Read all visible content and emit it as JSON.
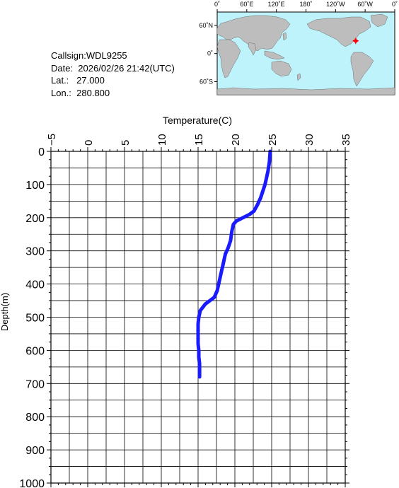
{
  "station": {
    "callsign": "Callsign:WDL9255",
    "date": "Date:  2026/02/26 21:42(UTC)",
    "lat": "Lat.:   27.000",
    "lon": "Lon.:  280.800"
  },
  "map": {
    "lon_ticks": [
      "0˚",
      "60˚E",
      "120˚E",
      "180˚",
      "120˚W",
      "60˚W",
      "0˚"
    ],
    "lat_ticks": [
      "60˚N",
      "0˚",
      "60˚S"
    ],
    "ocean_color": "#bff3fb",
    "land_color": "#bdbdbd",
    "marker_color": "#ff0000",
    "marker_lat": 27.0,
    "marker_lon": 280.8
  },
  "chart_data": {
    "type": "line",
    "title": "",
    "xlabel": "Temperature(C)",
    "ylabel": "Depth(m)",
    "xlim": [
      -5,
      35
    ],
    "ylim": [
      0,
      1000
    ],
    "x_ticks": [
      -5,
      0,
      5,
      10,
      15,
      20,
      25,
      30,
      35
    ],
    "y_ticks": [
      0,
      100,
      200,
      300,
      400,
      500,
      600,
      700,
      800,
      900,
      1000
    ],
    "x_tick_labels": [
      "−5",
      "0",
      "5",
      "10",
      "15",
      "20",
      "25",
      "30",
      "35"
    ],
    "y_tick_labels": [
      "0",
      "100",
      "200",
      "300",
      "400",
      "500",
      "600",
      "700",
      "800",
      "900",
      "1000"
    ],
    "grid": true,
    "line_color": "#1a1aff",
    "series": [
      {
        "temperature": [
          24.8,
          24.7,
          24.5,
          24.3,
          24.1,
          23.8,
          23.5,
          23.1,
          22.6,
          22.0,
          21.1,
          20.2,
          19.8,
          19.6,
          19.4,
          19.1,
          18.7,
          18.4,
          18.1,
          17.8,
          17.6,
          17.2,
          16.6,
          16.0,
          15.3,
          15.1,
          15.0,
          15.0,
          15.0,
          15.1,
          15.1,
          15.2,
          15.2,
          15.2
        ],
        "depth": [
          0,
          30,
          60,
          80,
          100,
          120,
          140,
          160,
          180,
          190,
          200,
          210,
          220,
          240,
          270,
          290,
          310,
          340,
          370,
          400,
          420,
          440,
          450,
          460,
          480,
          500,
          520,
          550,
          580,
          600,
          620,
          640,
          660,
          680
        ]
      }
    ]
  }
}
